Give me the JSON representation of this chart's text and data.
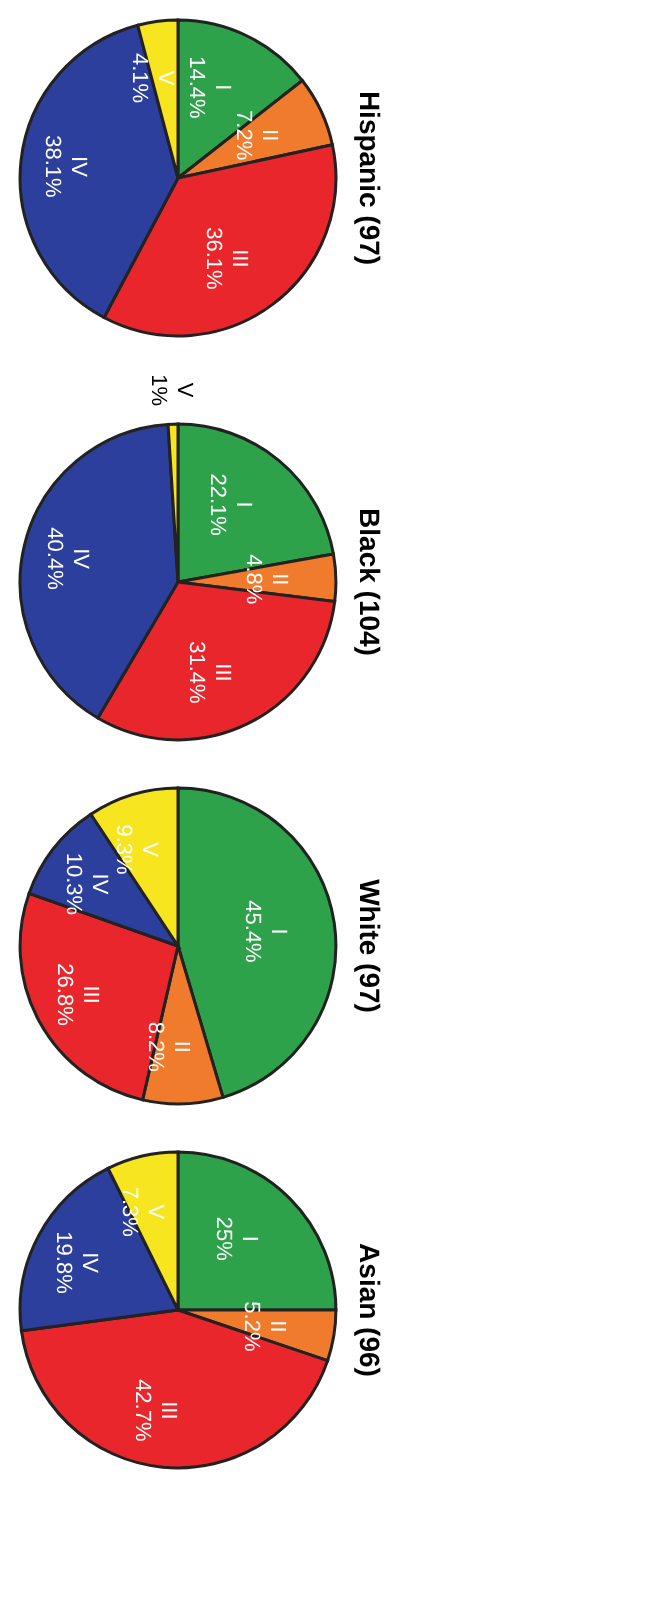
{
  "chart_data": [
    {
      "type": "pie",
      "title": "Hispanic (97)",
      "categories": [
        "I",
        "II",
        "III",
        "IV",
        "V"
      ],
      "values": [
        14.4,
        7.2,
        36.1,
        38.1,
        4.1
      ],
      "value_labels": [
        "14.4%",
        "7.2%",
        "36.1%",
        "38.1%",
        "4.1%"
      ],
      "colors": [
        "#2ea24a",
        "#f07b2c",
        "#e8262b",
        "#2c3f9c",
        "#f6e51f"
      ]
    },
    {
      "type": "pie",
      "title": "Black (104)",
      "categories": [
        "I",
        "II",
        "III",
        "IV",
        "V"
      ],
      "values": [
        22.1,
        4.8,
        31.4,
        40.4,
        1
      ],
      "value_labels": [
        "22.1%",
        "4.8%",
        "31.4%",
        "40.4%",
        "1%"
      ],
      "colors": [
        "#2ea24a",
        "#f07b2c",
        "#e8262b",
        "#2c3f9c",
        "#f6e51f"
      ]
    },
    {
      "type": "pie",
      "title": "White (97)",
      "categories": [
        "I",
        "II",
        "III",
        "IV",
        "V"
      ],
      "values": [
        45.4,
        8.2,
        26.8,
        10.3,
        9.3
      ],
      "value_labels": [
        "45.4%",
        "8.2%",
        "26.8%",
        "10.3%",
        "9.3%"
      ],
      "colors": [
        "#2ea24a",
        "#f07b2c",
        "#e8262b",
        "#2c3f9c",
        "#f6e51f"
      ]
    },
    {
      "type": "pie",
      "title": "Asian (96)",
      "categories": [
        "I",
        "II",
        "III",
        "IV",
        "V"
      ],
      "values": [
        25,
        5.2,
        42.7,
        19.8,
        7.3
      ],
      "value_labels": [
        "25%",
        "5.2%",
        "42.7%",
        "19.8%",
        "7.3%"
      ],
      "colors": [
        "#2ea24a",
        "#f07b2c",
        "#e8262b",
        "#2c3f9c",
        "#f6e51f"
      ]
    }
  ]
}
